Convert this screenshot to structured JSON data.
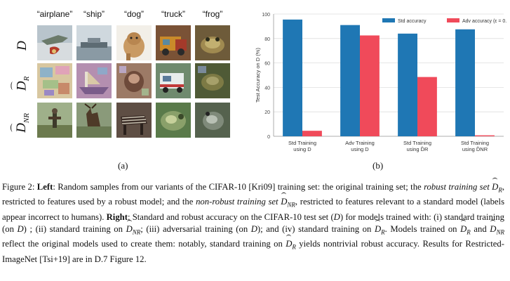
{
  "left_panel": {
    "column_labels": [
      "“airplane”",
      "“ship”",
      "“dog”",
      "“truck”",
      "“frog”"
    ],
    "row_labels": [
      {
        "base": "D",
        "sub": "",
        "hat": false
      },
      {
        "base": "D",
        "sub": "R",
        "hat": true
      },
      {
        "base": "D",
        "sub": "NR",
        "hat": true
      }
    ],
    "image_description_colors": {
      "row_D": [
        "#8a9ba7",
        "#a8b4bd",
        "#c9a883",
        "#8a6a4a",
        "#5a4a2e"
      ],
      "row_R": [
        "#c9b48a",
        "#b08aa8",
        "#8a6a5a",
        "#6a8a6a",
        "#4a5a3a"
      ],
      "row_NR": [
        "#7a8a6a",
        "#6a7a5a",
        "#5a4a3a",
        "#6a8a4a",
        "#5a6a5a"
      ]
    },
    "panel_label": "(a)"
  },
  "right_panel": {
    "panel_label": "(b)"
  },
  "chart_data": {
    "type": "bar",
    "categories": [
      "Std Training using 𝒟",
      "Adv Training using 𝒟",
      "Std Training using 𝒟̂R",
      "Std Training using 𝒟̂NR"
    ],
    "category_lines": [
      [
        "Std Training",
        "using D"
      ],
      [
        "Adv Training",
        "using D"
      ],
      [
        "Std Training",
        "using D̂R"
      ],
      [
        "Std Training",
        "using D̂NR"
      ]
    ],
    "series": [
      {
        "name": "Std accuracy",
        "color": "#1f77b4",
        "values": [
          95.5,
          91,
          84,
          87.5
        ]
      },
      {
        "name": "Adv accuracy (ε = 0.25)",
        "color": "#f04a5a",
        "values": [
          4.5,
          82.5,
          48.5,
          0.8
        ]
      }
    ],
    "ylabel": "Test Accuracy on D (%)",
    "ylim": [
      0,
      100
    ],
    "yticks": [
      0,
      20,
      40,
      60,
      80,
      100
    ],
    "grid": true,
    "legend_position": "top"
  },
  "caption": {
    "figure_label": "Figure 2:",
    "left_label": "Left",
    "text_1": ": Random samples from our variants of the CIFAR-10 [Kri09] training set: the original training set; the ",
    "robust_set_label": "robust training set",
    "text_2": ", restricted to features used by a robust model; and the ",
    "nonrobust_set_label": "non-robust training set",
    "text_3": ", restricted to features relevant to a standard model (labels appear incorrect to humans). ",
    "right_label": "Right",
    "text_4": ": Standard and robust accuracy on the CIFAR-10 test set (",
    "text_5": ") for models trained with: (i) standard training (on ",
    "text_6": ") ; (ii) standard training on ",
    "text_7": "; (iii) adversarial training (on ",
    "text_8": "); and (iv) standard training on ",
    "text_9": ". Models trained on ",
    "text_10": " and ",
    "text_11": " reflect the original models used to create them: notably, standard training on ",
    "text_12": " yields nontrivial robust accuracy. Results for Restricted-ImageNet [Tsi+19] are in  D.7 Figure 12."
  }
}
